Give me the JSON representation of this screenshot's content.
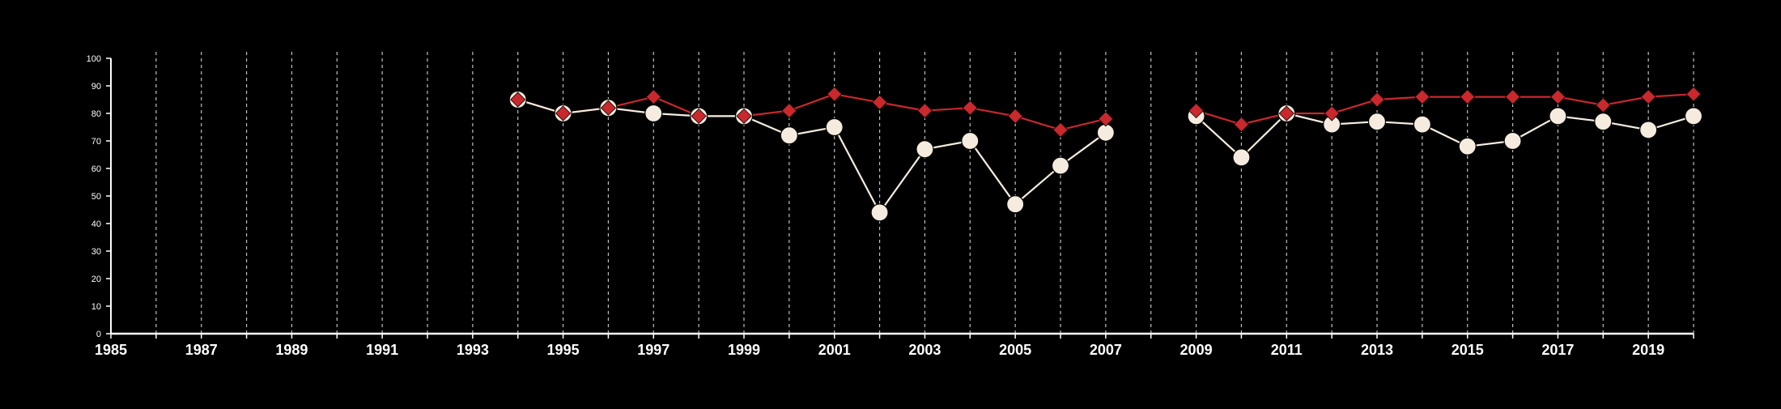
{
  "colors": {
    "background": "#000000",
    "axis": "#ffffff",
    "grid": "#ffffff",
    "series_a_line": "#f5ecdf",
    "series_a_marker": "#f5ecdf",
    "series_b_line": "#c9282d",
    "series_b_marker": "#c9282d"
  },
  "chart_data": {
    "type": "line",
    "title": "",
    "xlabel": "",
    "ylabel": "",
    "xlim": [
      1985,
      2020
    ],
    "ylim": [
      0,
      100
    ],
    "x_ticks": [
      1985,
      1987,
      1989,
      1991,
      1993,
      1995,
      1997,
      1999,
      2001,
      2003,
      2005,
      2007,
      2009,
      2011,
      2013,
      2015,
      2017,
      2019
    ],
    "y_ticks": [
      0,
      10,
      20,
      30,
      40,
      50,
      60,
      70,
      80,
      90,
      100
    ],
    "grid": {
      "vertical": true,
      "horizontal": false,
      "style": "dashed"
    },
    "legend": "none",
    "x": [
      1994,
      1995,
      1996,
      1997,
      1998,
      1999,
      2000,
      2001,
      2002,
      2003,
      2004,
      2005,
      2006,
      2007,
      2008,
      2009,
      2010,
      2011,
      2012,
      2013,
      2014,
      2015,
      2016,
      2017,
      2018,
      2019,
      2020
    ],
    "series": [
      {
        "marker": "circle",
        "values": [
          85,
          80,
          82,
          80,
          79,
          79,
          72,
          75,
          44,
          67,
          70,
          47,
          61,
          73,
          null,
          79,
          64,
          80,
          76,
          77,
          76,
          68,
          70,
          79,
          77,
          74,
          79
        ]
      },
      {
        "marker": "diamond",
        "values": [
          85,
          80,
          82,
          86,
          79,
          79,
          81,
          87,
          84,
          81,
          82,
          79,
          74,
          78,
          null,
          81,
          76,
          80,
          80,
          85,
          86,
          86,
          86,
          86,
          83,
          86,
          87
        ]
      }
    ]
  }
}
